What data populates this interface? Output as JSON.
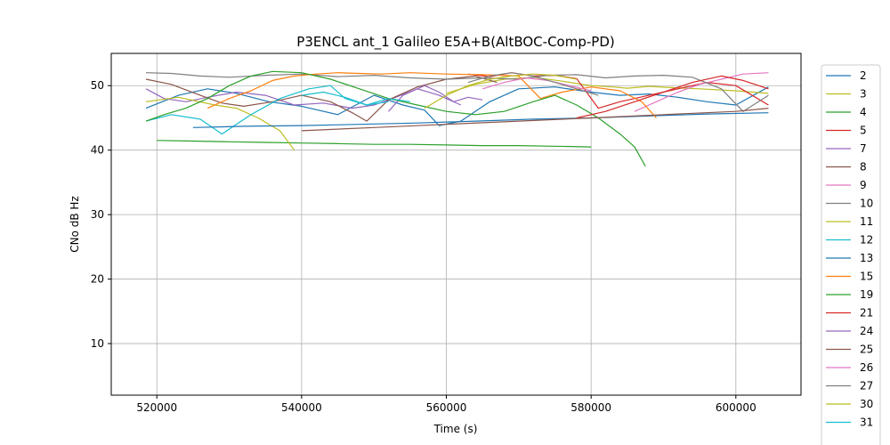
{
  "chart_data": {
    "type": "line",
    "title": "P3ENCL ant_1 Galileo E5A+B(AltBOC-Comp-PD)",
    "xlabel": "Time (s)",
    "ylabel": "CNo dB Hz",
    "xlim": [
      513700,
      609000
    ],
    "ylim": [
      2,
      55
    ],
    "xticks": [
      520000,
      540000,
      560000,
      580000,
      600000
    ],
    "xtick_labels": [
      "520000",
      "540000",
      "560000",
      "580000",
      "600000"
    ],
    "yticks": [
      10,
      20,
      30,
      40,
      50
    ],
    "ytick_labels": [
      "10",
      "20",
      "30",
      "40",
      "50"
    ],
    "grid": true,
    "legend_position": "right, outside plot",
    "series": [
      {
        "name": "2",
        "color": "#1f77b4",
        "x": [
          518500,
          523000,
          527000,
          531000,
          535500,
          540000,
          545000,
          550000,
          554000,
          557000,
          559000,
          562000,
          566000,
          570000,
          575000,
          580000,
          584000,
          588000,
          592000,
          596000,
          600000,
          604500
        ],
        "y": [
          46.5,
          48.5,
          49.5,
          48.8,
          47.5,
          46.8,
          45.5,
          48.5,
          47.0,
          46.2,
          43.8,
          44.5,
          47.5,
          49.5,
          49.8,
          49.0,
          48.5,
          48.7,
          48.2,
          47.5,
          47.0,
          49.8
        ]
      },
      {
        "name": "3",
        "color": "#bcbd22",
        "x": [
          560000,
          564000,
          568000,
          572000,
          576000,
          580000,
          583000,
          585000,
          588000,
          591000,
          595000,
          600000,
          604500
        ],
        "y": [
          48.8,
          50.2,
          51.0,
          51.3,
          50.7,
          50.0,
          49.8,
          49.6,
          49.9,
          49.7,
          49.5,
          49.2,
          48.8
        ]
      },
      {
        "name": "4",
        "color": "#2ca02c",
        "x": [
          520000,
          525000,
          530000,
          535000,
          540000,
          545000,
          550000,
          555000,
          560000,
          565000,
          570000,
          575000,
          580000
        ],
        "y": [
          41.5,
          41.4,
          41.3,
          41.2,
          41.1,
          41.0,
          40.9,
          40.9,
          40.8,
          40.7,
          40.7,
          40.6,
          40.5
        ]
      },
      {
        "name": "5",
        "color": "#d62728",
        "x": [
          563000,
          566000,
          569000,
          572000,
          575000,
          578000,
          581000,
          584000,
          588000,
          592000,
          596000,
          600000,
          604500
        ],
        "y": [
          51.8,
          51.4,
          52.0,
          51.5,
          51.6,
          51.1,
          46.5,
          47.5,
          48.5,
          49.5,
          50.5,
          50.0,
          47.0
        ]
      },
      {
        "name": "7",
        "color": "#9467bd",
        "x": [
          518500,
          521000,
          524000,
          527000,
          531000,
          535000,
          539000,
          543000,
          547000,
          550000,
          553000,
          556000,
          559000,
          562000
        ],
        "y": [
          49.5,
          48.0,
          47.5,
          48.2,
          49.0,
          48.5,
          47.0,
          47.3,
          46.5,
          47.0,
          48.2,
          49.5,
          48.5,
          47.0
        ]
      },
      {
        "name": "8",
        "color": "#8c564b",
        "x": [
          518500,
          522000,
          526000,
          529000,
          532000,
          536000,
          540000,
          544000,
          547000,
          549000,
          552000,
          556000,
          560000,
          564000,
          567000
        ],
        "y": [
          51.0,
          50.2,
          48.5,
          47.3,
          46.8,
          47.5,
          48.5,
          47.5,
          45.8,
          44.5,
          47.8,
          49.8,
          51.0,
          51.5,
          50.5
        ]
      },
      {
        "name": "9",
        "color": "#e377c2",
        "x": [
          586000,
          589000,
          592000,
          595000,
          598000,
          601000,
          604500
        ],
        "y": [
          46.0,
          47.5,
          49.0,
          50.2,
          51.0,
          51.8,
          52.0
        ]
      },
      {
        "name": "10",
        "color": "#7f7f7f",
        "x": [
          518500,
          522000,
          526000,
          530000,
          535000,
          540000,
          545000,
          550000,
          555000,
          560000,
          565000,
          570000,
          574000,
          578000,
          582000,
          586000,
          590000,
          594000,
          598000,
          601000,
          604500
        ],
        "y": [
          52.0,
          51.9,
          51.5,
          51.3,
          51.6,
          51.8,
          51.4,
          51.6,
          51.2,
          51.0,
          51.2,
          51.0,
          51.6,
          51.7,
          51.2,
          51.5,
          51.6,
          51.3,
          49.5,
          46.0,
          48.5
        ]
      },
      {
        "name": "11",
        "color": "#bcbd22",
        "x": [
          518500,
          523000,
          528000,
          531000,
          534000,
          537000,
          539000
        ],
        "y": [
          47.5,
          48.2,
          47.0,
          46.5,
          45.0,
          43.0,
          40.0
        ]
      },
      {
        "name": "12",
        "color": "#17becf",
        "x": [
          518500,
          522000,
          526000,
          529000,
          533000,
          537000,
          541000,
          544000,
          546000,
          549000,
          552000
        ],
        "y": [
          44.5,
          45.5,
          44.8,
          42.5,
          45.5,
          48.0,
          49.5,
          50.0,
          48.0,
          47.0,
          47.5
        ]
      },
      {
        "name": "13",
        "color": "#1f77b4",
        "x": [
          525000,
          532000,
          540000,
          548000,
          556000,
          564000,
          572000,
          580000,
          588000,
          596000,
          604500
        ],
        "y": [
          43.5,
          43.7,
          43.8,
          44.0,
          44.2,
          44.5,
          44.8,
          45.0,
          45.3,
          45.6,
          45.8
        ]
      },
      {
        "name": "15",
        "color": "#ff7f0e",
        "x": [
          527000,
          530000,
          533000,
          536000,
          539000,
          542000,
          545000,
          548000,
          551000,
          555000,
          560000,
          565000,
          570000,
          573000,
          576000,
          580000,
          584000,
          587000,
          589000
        ],
        "y": [
          46.5,
          48.0,
          49.2,
          50.8,
          51.5,
          51.8,
          52.0,
          51.9,
          51.8,
          52.0,
          51.8,
          51.7,
          51.5,
          48.0,
          49.0,
          49.8,
          49.2,
          47.5,
          45.0
        ]
      },
      {
        "name": "19",
        "color": "#2ca02c",
        "x": [
          518500,
          521000,
          524000,
          527000,
          530000,
          533000,
          536000,
          540000,
          544000,
          548000,
          552000,
          556000,
          560000,
          564000,
          568000,
          572000,
          575000,
          578000,
          581000,
          584000,
          586000,
          587500
        ],
        "y": [
          44.5,
          45.5,
          46.5,
          48.0,
          50.0,
          51.5,
          52.2,
          52.0,
          51.0,
          49.5,
          48.0,
          47.0,
          46.0,
          45.5,
          46.0,
          47.5,
          48.5,
          47.0,
          45.0,
          42.5,
          40.5,
          37.5
        ]
      },
      {
        "name": "21",
        "color": "#d62728",
        "x": [
          578000,
          582000,
          586000,
          590000,
          594000,
          598000,
          601000,
          604500
        ],
        "y": [
          45.0,
          46.0,
          47.5,
          49.0,
          50.5,
          51.5,
          50.8,
          49.5
        ]
      },
      {
        "name": "24",
        "color": "#9467bd",
        "x": [
          552000,
          554000,
          557000,
          559000,
          561000,
          563000,
          565000
        ],
        "y": [
          46.0,
          48.5,
          50.0,
          49.0,
          47.5,
          48.2,
          47.8
        ]
      },
      {
        "name": "25",
        "color": "#8c564b",
        "x": [
          540000,
          550000,
          560000,
          570000,
          580000,
          590000,
          600000,
          604500
        ],
        "y": [
          43.0,
          43.5,
          44.0,
          44.5,
          45.0,
          45.5,
          46.0,
          46.5
        ]
      },
      {
        "name": "26",
        "color": "#e377c2",
        "x": [
          565000,
          568000,
          571000,
          574000,
          577000,
          580000
        ],
        "y": [
          49.5,
          50.5,
          51.2,
          50.8,
          50.0,
          49.2
        ]
      },
      {
        "name": "27",
        "color": "#7f7f7f",
        "x": [
          563000,
          566000,
          569000,
          572000,
          575000,
          578000,
          581000
        ],
        "y": [
          50.5,
          51.5,
          52.0,
          51.5,
          50.5,
          49.5,
          48.5
        ]
      },
      {
        "name": "30",
        "color": "#bcbd22",
        "x": [
          557000,
          560000,
          563000,
          566000,
          569000,
          572000,
          575000,
          578000
        ],
        "y": [
          46.5,
          48.5,
          50.0,
          51.0,
          51.5,
          51.8,
          51.6,
          51.0
        ]
      },
      {
        "name": "31",
        "color": "#17becf",
        "x": [
          540000,
          543000,
          546000,
          549000,
          552000,
          555000
        ],
        "y": [
          48.5,
          49.0,
          48.2,
          47.0,
          48.0,
          47.5
        ]
      }
    ]
  }
}
